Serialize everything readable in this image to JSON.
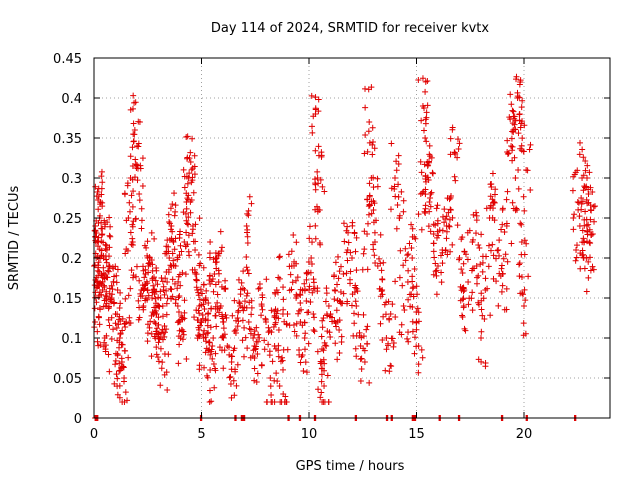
{
  "chart_data": {
    "type": "scatter",
    "title": "Day 114 of 2024, SRMTID for receiver kvtx",
    "xlabel": "GPS time / hours",
    "ylabel": "SRMTID / TECUs",
    "xlim": [
      0,
      24
    ],
    "ylim": [
      0,
      0.45
    ],
    "grid": true,
    "marker": "plus",
    "color": "#e00000",
    "xticks": [
      {
        "value": 0,
        "label": "0"
      },
      {
        "value": 5,
        "label": "5"
      },
      {
        "value": 10,
        "label": "10"
      },
      {
        "value": 15,
        "label": "15"
      },
      {
        "value": 20,
        "label": "20"
      }
    ],
    "yticks": [
      {
        "value": 0,
        "label": "0"
      },
      {
        "value": 0.05,
        "label": "0.05"
      },
      {
        "value": 0.1,
        "label": "0.1"
      },
      {
        "value": 0.15,
        "label": "0.15"
      },
      {
        "value": 0.2,
        "label": "0.2"
      },
      {
        "value": 0.25,
        "label": "0.25"
      },
      {
        "value": 0.3,
        "label": "0.3"
      },
      {
        "value": 0.35,
        "label": "0.35"
      },
      {
        "value": 0.4,
        "label": "0.4"
      },
      {
        "value": 0.45,
        "label": "0.45"
      }
    ],
    "points": [
      [
        0.0,
        0.19
      ],
      [
        0.05,
        0.12
      ],
      [
        0.1,
        0.2
      ],
      [
        0.15,
        0.17
      ],
      [
        0.2,
        0.22
      ],
      [
        0.25,
        0.25
      ],
      [
        0.3,
        0.27
      ],
      [
        0.35,
        0.18
      ],
      [
        0.4,
        0.16
      ],
      [
        0.45,
        0.2
      ],
      [
        0.5,
        0.1
      ],
      [
        0.55,
        0.14
      ],
      [
        0.6,
        0.21
      ],
      [
        0.7,
        0.19
      ],
      [
        0.8,
        0.15
      ],
      [
        0.9,
        0.17
      ],
      [
        1.0,
        0.13
      ],
      [
        1.1,
        0.08
      ],
      [
        1.2,
        0.1
      ],
      [
        1.3,
        0.07
      ],
      [
        1.4,
        0.05
      ],
      [
        1.5,
        0.12
      ],
      [
        1.6,
        0.25
      ],
      [
        1.7,
        0.3
      ],
      [
        1.8,
        0.22
      ],
      [
        1.9,
        0.36
      ],
      [
        2.0,
        0.34
      ],
      [
        2.1,
        0.28
      ],
      [
        2.2,
        0.16
      ],
      [
        2.3,
        0.14
      ],
      [
        2.4,
        0.18
      ],
      [
        2.5,
        0.16
      ],
      [
        2.6,
        0.2
      ],
      [
        2.7,
        0.15
      ],
      [
        2.8,
        0.12
      ],
      [
        2.9,
        0.13
      ],
      [
        3.0,
        0.1
      ],
      [
        3.1,
        0.15
      ],
      [
        3.2,
        0.14
      ],
      [
        3.3,
        0.08
      ],
      [
        3.4,
        0.17
      ],
      [
        3.5,
        0.2
      ],
      [
        3.6,
        0.24
      ],
      [
        3.7,
        0.22
      ],
      [
        3.8,
        0.19
      ],
      [
        3.9,
        0.14
      ],
      [
        4.0,
        0.12
      ],
      [
        4.1,
        0.11
      ],
      [
        4.2,
        0.22
      ],
      [
        4.3,
        0.27
      ],
      [
        4.4,
        0.3
      ],
      [
        4.5,
        0.32
      ],
      [
        4.6,
        0.24
      ],
      [
        4.7,
        0.21
      ],
      [
        4.8,
        0.16
      ],
      [
        4.9,
        0.14
      ],
      [
        5.0,
        0.12
      ],
      [
        5.1,
        0.1
      ],
      [
        5.2,
        0.15
      ],
      [
        5.3,
        0.13
      ],
      [
        5.4,
        0.06
      ],
      [
        5.5,
        0.09
      ],
      [
        5.6,
        0.18
      ],
      [
        5.7,
        0.2
      ],
      [
        5.8,
        0.17
      ],
      [
        5.9,
        0.14
      ],
      [
        6.0,
        0.12
      ],
      [
        6.2,
        0.09
      ],
      [
        6.4,
        0.07
      ],
      [
        6.6,
        0.11
      ],
      [
        6.8,
        0.14
      ],
      [
        7.0,
        0.16
      ],
      [
        7.1,
        0.24
      ],
      [
        7.2,
        0.12
      ],
      [
        7.4,
        0.1
      ],
      [
        7.6,
        0.08
      ],
      [
        7.8,
        0.14
      ],
      [
        8.0,
        0.12
      ],
      [
        8.2,
        0.05
      ],
      [
        8.4,
        0.09
      ],
      [
        8.5,
        0.16
      ],
      [
        8.6,
        0.11
      ],
      [
        8.8,
        0.03
      ],
      [
        9.0,
        0.13
      ],
      [
        9.2,
        0.19
      ],
      [
        9.4,
        0.15
      ],
      [
        9.6,
        0.12
      ],
      [
        9.8,
        0.1
      ],
      [
        10.0,
        0.16
      ],
      [
        10.1,
        0.2
      ],
      [
        10.2,
        0.13
      ],
      [
        10.3,
        0.38
      ],
      [
        10.4,
        0.3
      ],
      [
        10.5,
        0.26
      ],
      [
        10.6,
        0.07
      ],
      [
        10.7,
        0.04
      ],
      [
        10.8,
        0.09
      ],
      [
        11.0,
        0.13
      ],
      [
        11.2,
        0.16
      ],
      [
        11.4,
        0.11
      ],
      [
        11.6,
        0.18
      ],
      [
        11.8,
        0.21
      ],
      [
        12.0,
        0.2
      ],
      [
        12.2,
        0.14
      ],
      [
        12.4,
        0.09
      ],
      [
        12.6,
        0.07
      ],
      [
        12.7,
        0.23
      ],
      [
        12.8,
        0.37
      ],
      [
        12.9,
        0.3
      ],
      [
        13.0,
        0.26
      ],
      [
        13.2,
        0.19
      ],
      [
        13.4,
        0.16
      ],
      [
        13.6,
        0.1
      ],
      [
        13.8,
        0.13
      ],
      [
        14.0,
        0.3
      ],
      [
        14.2,
        0.25
      ],
      [
        14.4,
        0.14
      ],
      [
        14.6,
        0.17
      ],
      [
        14.8,
        0.2
      ],
      [
        15.0,
        0.12
      ],
      [
        15.1,
        0.09
      ],
      [
        15.2,
        0.28
      ],
      [
        15.3,
        0.39
      ],
      [
        15.4,
        0.35
      ],
      [
        15.5,
        0.32
      ],
      [
        15.6,
        0.27
      ],
      [
        15.8,
        0.23
      ],
      [
        16.0,
        0.19
      ],
      [
        16.2,
        0.21
      ],
      [
        16.4,
        0.24
      ],
      [
        16.6,
        0.26
      ],
      [
        16.8,
        0.33
      ],
      [
        17.0,
        0.2
      ],
      [
        17.2,
        0.14
      ],
      [
        17.4,
        0.17
      ],
      [
        17.6,
        0.22
      ],
      [
        17.8,
        0.19
      ],
      [
        18.0,
        0.1
      ],
      [
        18.2,
        0.16
      ],
      [
        18.4,
        0.25
      ],
      [
        18.6,
        0.27
      ],
      [
        18.8,
        0.21
      ],
      [
        19.0,
        0.18
      ],
      [
        19.2,
        0.24
      ],
      [
        19.4,
        0.34
      ],
      [
        19.5,
        0.36
      ],
      [
        19.6,
        0.3
      ],
      [
        19.7,
        0.4
      ],
      [
        19.8,
        0.38
      ],
      [
        19.9,
        0.22
      ],
      [
        20.0,
        0.14
      ],
      [
        20.1,
        0.31
      ],
      [
        22.5,
        0.27
      ],
      [
        22.6,
        0.24
      ],
      [
        22.7,
        0.3
      ],
      [
        22.8,
        0.22
      ],
      [
        22.9,
        0.2
      ],
      [
        23.0,
        0.28
      ],
      [
        23.1,
        0.26
      ],
      [
        23.2,
        0.23
      ]
    ],
    "zero_marks": [
      0.05,
      0.12,
      4.95,
      6.55,
      6.85,
      6.95,
      9.02,
      9.55,
      10.25,
      12.15,
      13.6,
      13.82,
      14.8,
      14.9,
      16.05,
      16.95,
      18.95,
      20.1,
      22.35
    ]
  }
}
